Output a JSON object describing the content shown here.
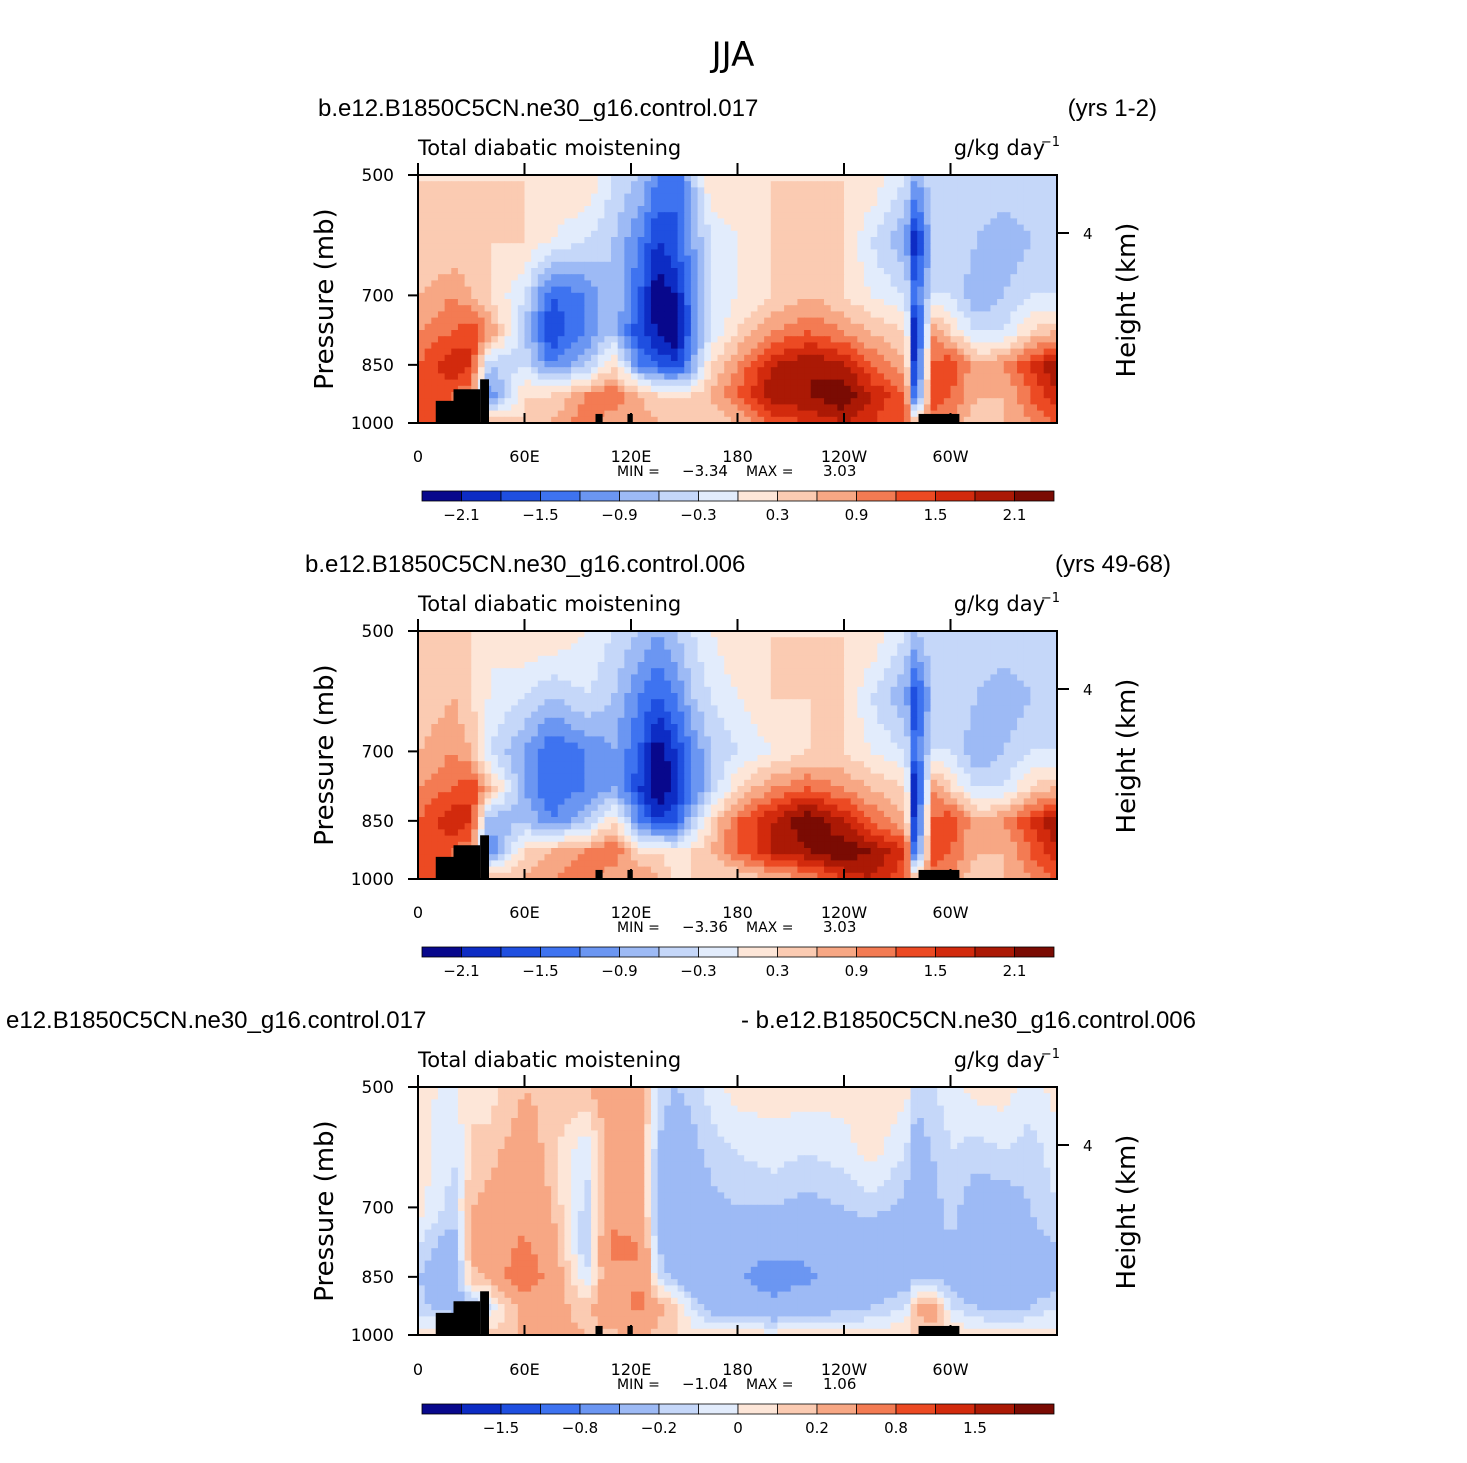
{
  "figure_title": "JJA",
  "colors": {
    "scale": [
      "#08088c",
      "#0d2cc4",
      "#1f4fe0",
      "#3e73f0",
      "#6b96f2",
      "#9dbaf5",
      "#c5d7f9",
      "#e2ecfc",
      "#fde6d8",
      "#fbcbb2",
      "#f7a784",
      "#f37b53",
      "#ec4a23",
      "#d22a0d",
      "#ab1905",
      "#7a0b03"
    ],
    "land": "#000000"
  },
  "chart_data": [
    {
      "type": "heatmap",
      "case_label": "b.e12.B1850C5CN.ne30_g16.control.017",
      "years_label": "(yrs 1-2)",
      "title": "Total diabatic moistening",
      "units_text": "g/kg day",
      "units_exp": "−1",
      "ylabel": "Pressure (mb)",
      "ylabel_right": "Height (km)",
      "y_ticks": [
        "500",
        "700",
        "850",
        "1000"
      ],
      "y_right_ticks": [
        "4"
      ],
      "x_ticks": [
        "0",
        "60E",
        "120E",
        "180",
        "120W",
        "60W"
      ],
      "stats_min_label": "MIN =",
      "stats_min": "−3.34",
      "stats_max_label": "MAX =",
      "stats_max": "3.03",
      "min": -3.34,
      "max": 3.03,
      "colorbar_labels": [
        "−2.1",
        "−1.5",
        "−0.9",
        "−0.3",
        "0.3",
        "0.9",
        "1.5",
        "2.1"
      ],
      "levels": [
        -2.4,
        -2.1,
        -1.8,
        -1.5,
        -1.2,
        -0.9,
        -0.6,
        -0.3,
        0,
        0.3,
        0.6,
        0.9,
        1.2,
        1.5,
        1.8,
        2.1,
        2.4
      ],
      "grid_lon": [
        0,
        20,
        30,
        40,
        60,
        75,
        95,
        110,
        125,
        135,
        145,
        155,
        165,
        180,
        200,
        220,
        240,
        255,
        275,
        280,
        290,
        300,
        315,
        330,
        345,
        360
      ],
      "grid_p": [
        500,
        600,
        700,
        775,
        850,
        925,
        1000
      ],
      "values": [
        [
          0.3,
          0.3,
          0.3,
          0.3,
          0.3,
          0.3,
          0.3,
          -0.3,
          -0.6,
          -1.2,
          -1.5,
          -0.6,
          0.3,
          0.3,
          0.3,
          0.3,
          0.3,
          0.3,
          -0.3,
          -0.9,
          -0.3,
          -0.3,
          -0.3,
          -0.3,
          -0.3,
          -0.3
        ],
        [
          0.3,
          0.3,
          0.3,
          0.3,
          0.3,
          0.0,
          -0.3,
          -0.6,
          -1.2,
          -1.8,
          -1.5,
          -0.9,
          -0.3,
          0.0,
          0.3,
          0.3,
          0.3,
          -0.3,
          -0.9,
          -2.1,
          -0.6,
          -0.3,
          -0.6,
          -0.9,
          -0.6,
          -0.3
        ],
        [
          0.6,
          0.9,
          0.6,
          0.3,
          -0.3,
          -1.5,
          -1.2,
          -0.6,
          -1.5,
          -2.4,
          -2.1,
          -1.2,
          -0.3,
          0.0,
          0.3,
          0.6,
          0.3,
          0.0,
          -0.3,
          -1.5,
          -0.3,
          -0.3,
          -0.9,
          -0.6,
          -0.3,
          -0.3
        ],
        [
          0.9,
          1.2,
          1.5,
          0.9,
          -0.6,
          -1.8,
          -1.2,
          -0.6,
          -1.8,
          -2.1,
          -2.4,
          -1.2,
          -0.3,
          0.3,
          0.9,
          1.2,
          0.9,
          0.6,
          0.3,
          -2.4,
          0.9,
          0.3,
          -0.3,
          -0.3,
          0.3,
          0.6
        ],
        [
          1.2,
          1.8,
          1.5,
          -0.6,
          -0.3,
          -1.2,
          -0.6,
          0.3,
          -1.2,
          -1.5,
          -1.8,
          -0.9,
          0.3,
          0.9,
          1.8,
          2.1,
          1.8,
          1.2,
          0.6,
          -2.1,
          1.2,
          1.5,
          0.6,
          0.9,
          1.5,
          2.1
        ],
        [
          1.5,
          1.2,
          0.9,
          -1.2,
          0.3,
          0.3,
          0.9,
          1.2,
          0.6,
          0.3,
          0.3,
          0.3,
          0.6,
          1.2,
          2.1,
          2.1,
          2.4,
          1.8,
          1.2,
          -1.8,
          1.5,
          1.2,
          0.6,
          0.6,
          1.2,
          1.8
        ],
        [
          1.2,
          1.2,
          0.6,
          0.6,
          0.3,
          0.6,
          1.2,
          0.6,
          0.9,
          0.6,
          0.6,
          0.3,
          0.3,
          0.6,
          1.2,
          1.5,
          1.8,
          1.5,
          1.2,
          0.6,
          0.9,
          0.9,
          0.3,
          0.6,
          0.9,
          1.2
        ]
      ],
      "mask": [
        [
          10,
          20,
          940,
          1000
        ],
        [
          20,
          35,
          910,
          1000
        ],
        [
          35,
          40,
          885,
          1000
        ],
        [
          100,
          104,
          975,
          1000
        ],
        [
          118,
          121,
          975,
          1000
        ],
        [
          282,
          305,
          975,
          1000
        ]
      ]
    },
    {
      "type": "heatmap",
      "case_label": "b.e12.B1850C5CN.ne30_g16.control.006",
      "years_label": "(yrs 49-68)",
      "title": "Total diabatic moistening",
      "units_text": "g/kg day",
      "units_exp": "−1",
      "ylabel": "Pressure (mb)",
      "ylabel_right": "Height (km)",
      "y_ticks": [
        "500",
        "700",
        "850",
        "1000"
      ],
      "y_right_ticks": [
        "4"
      ],
      "x_ticks": [
        "0",
        "60E",
        "120E",
        "180",
        "120W",
        "60W"
      ],
      "stats_min_label": "MIN =",
      "stats_min": "−3.36",
      "stats_max_label": "MAX =",
      "stats_max": "3.03",
      "min": -3.36,
      "max": 3.03,
      "colorbar_labels": [
        "−2.1",
        "−1.5",
        "−0.9",
        "−0.3",
        "0.3",
        "0.9",
        "1.5",
        "2.1"
      ],
      "levels": [
        -2.4,
        -2.1,
        -1.8,
        -1.5,
        -1.2,
        -0.9,
        -0.6,
        -0.3,
        0,
        0.3,
        0.6,
        0.9,
        1.2,
        1.5,
        1.8,
        2.1,
        2.4
      ],
      "grid_lon": [
        0,
        20,
        30,
        40,
        60,
        75,
        95,
        110,
        125,
        135,
        145,
        155,
        165,
        180,
        200,
        220,
        240,
        255,
        275,
        280,
        290,
        300,
        315,
        330,
        345,
        360
      ],
      "grid_p": [
        500,
        600,
        700,
        775,
        850,
        925,
        1000
      ],
      "values": [
        [
          0.3,
          0.3,
          0.3,
          0.0,
          0.3,
          0.3,
          0.0,
          -0.3,
          -0.6,
          -0.9,
          -0.6,
          -0.3,
          0.0,
          0.3,
          0.3,
          0.3,
          0.3,
          0.3,
          -0.3,
          -0.6,
          -0.3,
          -0.3,
          -0.3,
          -0.3,
          -0.3,
          -0.3
        ],
        [
          0.3,
          0.6,
          0.3,
          0.0,
          -0.3,
          -0.6,
          -0.3,
          -0.6,
          -1.2,
          -1.5,
          -1.2,
          -0.6,
          -0.3,
          0.0,
          0.3,
          0.3,
          0.3,
          -0.3,
          -0.9,
          -1.8,
          -0.6,
          -0.3,
          -0.6,
          -0.9,
          -0.6,
          -0.3
        ],
        [
          0.6,
          0.9,
          0.6,
          -0.3,
          -0.9,
          -1.5,
          -1.2,
          -0.9,
          -1.5,
          -2.4,
          -1.8,
          -1.2,
          -0.6,
          -0.3,
          0.0,
          0.3,
          0.3,
          0.0,
          -0.3,
          -1.5,
          -0.3,
          -0.3,
          -0.9,
          -0.6,
          -0.3,
          -0.3
        ],
        [
          0.9,
          1.2,
          1.5,
          0.6,
          -0.9,
          -1.5,
          -1.2,
          -0.9,
          -1.8,
          -2.4,
          -2.1,
          -1.2,
          -0.6,
          0.3,
          0.9,
          1.2,
          0.9,
          0.6,
          0.3,
          -2.4,
          0.9,
          0.3,
          -0.3,
          -0.3,
          0.3,
          0.6
        ],
        [
          1.2,
          1.8,
          1.5,
          -0.9,
          -0.6,
          -1.2,
          -0.6,
          0.3,
          -1.2,
          -1.8,
          -1.5,
          -0.6,
          0.3,
          1.2,
          1.8,
          2.4,
          1.8,
          1.2,
          0.6,
          -2.1,
          1.2,
          1.5,
          0.6,
          0.9,
          1.5,
          2.1
        ],
        [
          1.5,
          1.2,
          0.9,
          -1.2,
          0.3,
          0.6,
          0.9,
          1.2,
          0.3,
          0.3,
          0.0,
          0.3,
          0.6,
          1.2,
          1.8,
          2.1,
          2.4,
          2.1,
          1.5,
          -1.8,
          1.5,
          1.2,
          0.6,
          0.6,
          1.2,
          1.8
        ],
        [
          1.2,
          1.2,
          0.6,
          0.6,
          0.6,
          0.9,
          1.2,
          0.6,
          0.9,
          0.6,
          0.3,
          0.3,
          0.3,
          0.3,
          0.6,
          0.9,
          1.5,
          1.8,
          1.2,
          0.6,
          0.9,
          0.9,
          0.3,
          0.6,
          0.9,
          1.2
        ]
      ],
      "mask": [
        [
          10,
          20,
          940,
          1000
        ],
        [
          20,
          35,
          910,
          1000
        ],
        [
          35,
          40,
          885,
          1000
        ],
        [
          100,
          104,
          975,
          1000
        ],
        [
          118,
          121,
          975,
          1000
        ],
        [
          282,
          305,
          975,
          1000
        ]
      ]
    },
    {
      "type": "heatmap",
      "case_label": "e12.B1850C5CN.ne30_g16.control.017",
      "years_label": "- b.e12.B1850C5CN.ne30_g16.control.006",
      "title": "Total diabatic moistening",
      "units_text": "g/kg day",
      "units_exp": "−1",
      "ylabel": "Pressure (mb)",
      "ylabel_right": "Height (km)",
      "y_ticks": [
        "500",
        "700",
        "850",
        "1000"
      ],
      "y_right_ticks": [
        "4"
      ],
      "x_ticks": [
        "0",
        "60E",
        "120E",
        "180",
        "120W",
        "60W"
      ],
      "stats_min_label": "MIN =",
      "stats_min": "−1.04",
      "stats_max_label": "MAX =",
      "stats_max": "1.06",
      "min": -1.04,
      "max": 1.06,
      "colorbar_labels": [
        "−1.5",
        "−0.8",
        "−0.2",
        "0",
        "0.2",
        "0.8",
        "1.5"
      ],
      "colorbar_label_bounds": [
        2,
        4,
        6,
        8,
        10,
        12,
        14
      ],
      "levels": [
        -2.0,
        -1.5,
        -1.2,
        -1.0,
        -0.8,
        -0.5,
        -0.2,
        -0.1,
        0,
        0.1,
        0.2,
        0.5,
        0.8,
        1.0,
        1.2,
        1.5,
        2.0
      ],
      "grid_lon": [
        0,
        20,
        30,
        40,
        60,
        75,
        95,
        110,
        125,
        135,
        145,
        155,
        165,
        180,
        200,
        220,
        240,
        255,
        275,
        280,
        290,
        300,
        315,
        330,
        345,
        360
      ],
      "grid_p": [
        500,
        600,
        700,
        775,
        850,
        925,
        1000
      ],
      "values": [
        [
          0.05,
          -0.05,
          0.1,
          0.05,
          0.2,
          0.15,
          0.2,
          0.3,
          0.3,
          -0.1,
          -0.2,
          -0.15,
          -0.05,
          0.05,
          0.05,
          0.05,
          0.05,
          0.05,
          0.05,
          -0.15,
          -0.1,
          -0.05,
          0.05,
          0.05,
          -0.05,
          0.05
        ],
        [
          0.05,
          -0.1,
          0.1,
          0.15,
          0.3,
          0.15,
          -0.1,
          0.35,
          0.3,
          -0.2,
          -0.4,
          -0.25,
          -0.15,
          -0.1,
          -0.05,
          -0.1,
          -0.05,
          0.05,
          -0.1,
          -0.3,
          -0.2,
          -0.1,
          -0.15,
          -0.1,
          -0.15,
          -0.05
        ],
        [
          0.05,
          -0.15,
          0.2,
          0.25,
          0.35,
          0.2,
          -0.15,
          0.45,
          0.35,
          -0.3,
          -0.45,
          -0.35,
          -0.25,
          -0.2,
          -0.2,
          -0.25,
          -0.2,
          -0.15,
          -0.25,
          -0.4,
          -0.25,
          -0.15,
          -0.3,
          -0.3,
          -0.2,
          -0.1
        ],
        [
          -0.1,
          -0.3,
          0.25,
          0.35,
          0.55,
          0.3,
          -0.2,
          0.55,
          0.5,
          -0.2,
          -0.4,
          -0.35,
          -0.3,
          -0.35,
          -0.4,
          -0.4,
          -0.35,
          -0.3,
          -0.35,
          -0.45,
          -0.3,
          -0.2,
          -0.35,
          -0.35,
          -0.25,
          -0.2
        ],
        [
          -0.2,
          -0.4,
          0.15,
          0.2,
          0.8,
          0.35,
          -0.1,
          0.45,
          0.5,
          -0.1,
          -0.25,
          -0.45,
          -0.5,
          -0.45,
          -0.65,
          -0.55,
          -0.4,
          -0.35,
          -0.3,
          -0.25,
          -0.2,
          -0.3,
          -0.4,
          -0.45,
          -0.35,
          -0.25
        ],
        [
          -0.15,
          -0.3,
          -0.2,
          -0.1,
          0.3,
          0.25,
          0.15,
          0.35,
          0.55,
          0.25,
          0.15,
          -0.1,
          -0.3,
          -0.35,
          -0.4,
          -0.3,
          -0.25,
          -0.2,
          -0.1,
          0.2,
          0.3,
          -0.1,
          -0.2,
          -0.25,
          -0.2,
          -0.1
        ],
        [
          0.05,
          0.1,
          0.1,
          0.15,
          0.2,
          0.25,
          0.2,
          0.15,
          0.25,
          0.15,
          0.1,
          0.05,
          0.05,
          0.05,
          0.05,
          0.05,
          0.05,
          0.05,
          0.1,
          0.15,
          0.15,
          0.1,
          0.05,
          0.05,
          0.05,
          0.05
        ]
      ],
      "mask": [
        [
          10,
          20,
          940,
          1000
        ],
        [
          20,
          35,
          910,
          1000
        ],
        [
          35,
          40,
          885,
          1000
        ],
        [
          100,
          104,
          975,
          1000
        ],
        [
          118,
          121,
          975,
          1000
        ],
        [
          282,
          305,
          975,
          1000
        ]
      ]
    }
  ]
}
